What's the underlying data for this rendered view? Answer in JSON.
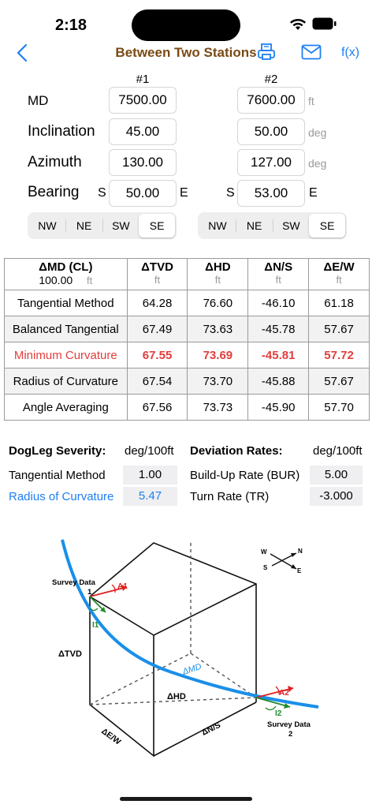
{
  "status": {
    "time": "2:18"
  },
  "nav": {
    "title": "Between Two Stations",
    "fx_label": "f(x)"
  },
  "inputs": {
    "col1": "#1",
    "col2": "#2",
    "rows": [
      {
        "label": "MD",
        "v1": "7500.00",
        "v2": "7600.00",
        "unit": "ft"
      },
      {
        "label": "Inclination",
        "v1": "45.00",
        "v2": "50.00",
        "unit": "deg"
      },
      {
        "label": "Azimuth",
        "v1": "130.00",
        "v2": "127.00",
        "unit": "deg"
      },
      {
        "label": "Bearing",
        "v1": "50.00",
        "v2": "53.00",
        "prefix": "S",
        "suffix": "E"
      }
    ],
    "segments": [
      "NW",
      "NE",
      "SW",
      "SE"
    ],
    "selected": "SE"
  },
  "results": {
    "headers": [
      {
        "title": "ΔMD (CL)",
        "value": "100.00",
        "unit": "ft"
      },
      {
        "title": "ΔTVD",
        "unit": "ft"
      },
      {
        "title": "ΔHD",
        "unit": "ft"
      },
      {
        "title": "ΔN/S",
        "unit": "ft"
      },
      {
        "title": "ΔE/W",
        "unit": "ft"
      }
    ],
    "rows": [
      {
        "method": "Tangential Method",
        "tvd": "64.28",
        "hd": "76.60",
        "ns": "-46.10",
        "ew": "61.18"
      },
      {
        "method": "Balanced Tangential",
        "tvd": "67.49",
        "hd": "73.63",
        "ns": "-45.78",
        "ew": "57.67"
      },
      {
        "method": "Minimum Curvature",
        "tvd": "67.55",
        "hd": "73.69",
        "ns": "-45.81",
        "ew": "57.72"
      },
      {
        "method": "Radius of Curvature",
        "tvd": "67.54",
        "hd": "73.70",
        "ns": "-45.88",
        "ew": "57.67"
      },
      {
        "method": "Angle Averaging",
        "tvd": "67.56",
        "hd": "73.73",
        "ns": "-45.90",
        "ew": "57.70"
      }
    ],
    "highlight_color": "#e33d3d"
  },
  "dogleg": {
    "title": "DogLeg Severity:",
    "unit": "deg/100ft",
    "rows": [
      {
        "label": "Tangential Method",
        "value": "1.00"
      },
      {
        "label": "Radius of Curvature",
        "value": "5.47"
      }
    ]
  },
  "deviation": {
    "title": "Deviation Rates:",
    "unit": "deg/100ft",
    "rows": [
      {
        "label": "Build-Up Rate (BUR)",
        "value": "5.00"
      },
      {
        "label": "Turn Rate (TR)",
        "value": "-3.000"
      }
    ]
  },
  "diagram": {
    "survey1": "Survey Data",
    "survey1_num": "1",
    "survey2": "Survey Data",
    "survey2_num": "2",
    "a1": "A1",
    "a2": "A2",
    "i1": "I1",
    "i2": "I2",
    "tvd": "ΔTVD",
    "hd": "ΔHD",
    "md": "ΔMD",
    "ew": "ΔE/W",
    "ns": "ΔN/S",
    "compass": {
      "w": "W",
      "n": "N",
      "s": "S",
      "e": "E"
    },
    "colors": {
      "path": "#1a8fe8",
      "azimuth": "#e02020",
      "inclination": "#1f8a2a"
    }
  }
}
